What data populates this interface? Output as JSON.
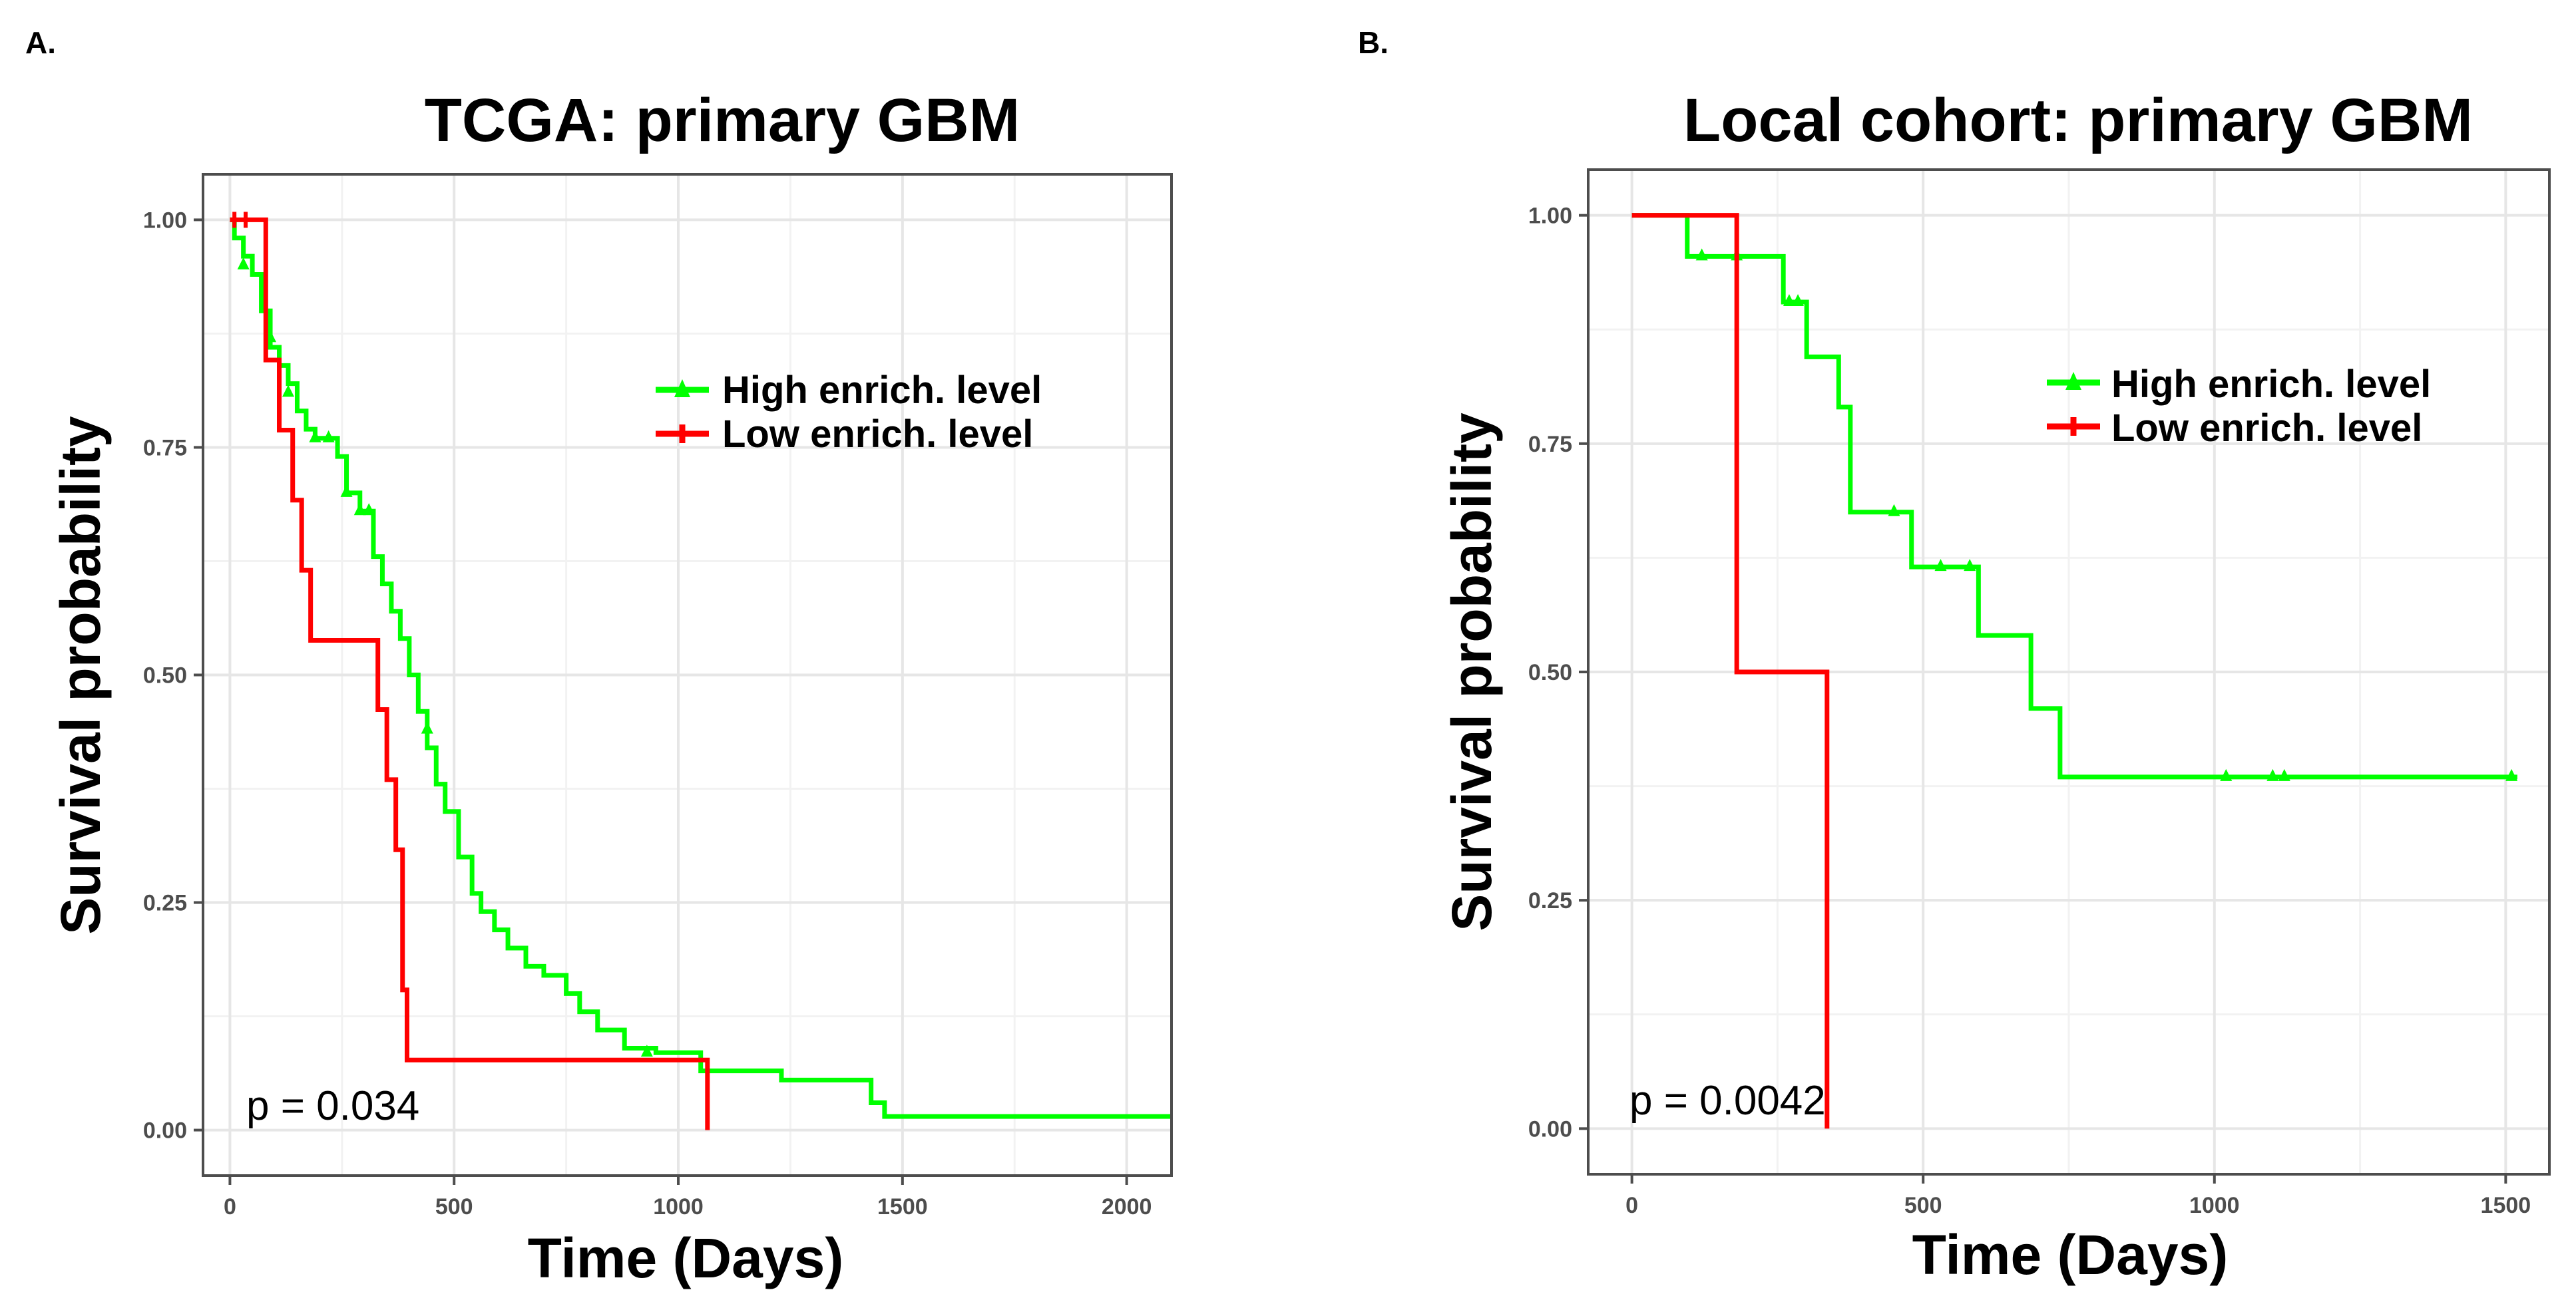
{
  "figure": {
    "panel_labels": [
      "A.",
      "B."
    ]
  },
  "chart_data": [
    {
      "type": "line",
      "subtype": "kaplan-meier",
      "panel": "A.",
      "title": "TCGA: primary GBM",
      "xlabel": "Time (Days)",
      "ylabel": "Survival probability",
      "xlim": [
        -60,
        2100
      ],
      "ylim": [
        -0.05,
        1.05
      ],
      "xticks": [
        0,
        500,
        1000,
        1500,
        2000
      ],
      "xtick_labels": [
        "0",
        "500",
        "1000",
        "1500",
        "2000"
      ],
      "yticks": [
        0,
        0.25,
        0.5,
        0.75,
        1.0
      ],
      "ytick_labels": [
        "0.00",
        "0.25",
        "0.50",
        "0.75",
        "1.00"
      ],
      "grid": true,
      "legend_position": "top-right",
      "annotation": "p = 0.034",
      "series": [
        {
          "name": "High enrich. level",
          "color": "#00ff00",
          "times": [
            0,
            10,
            30,
            50,
            70,
            90,
            110,
            130,
            150,
            170,
            190,
            240,
            260,
            290,
            320,
            340,
            360,
            380,
            400,
            420,
            440,
            460,
            480,
            510,
            540,
            560,
            590,
            620,
            660,
            700,
            750,
            780,
            820,
            880,
            950,
            1050,
            1230,
            1430,
            1460,
            2100
          ],
          "survival": [
            1.0,
            0.98,
            0.96,
            0.94,
            0.9,
            0.86,
            0.84,
            0.82,
            0.79,
            0.77,
            0.76,
            0.74,
            0.7,
            0.68,
            0.63,
            0.6,
            0.57,
            0.54,
            0.5,
            0.46,
            0.42,
            0.38,
            0.35,
            0.3,
            0.26,
            0.24,
            0.22,
            0.2,
            0.18,
            0.17,
            0.15,
            0.13,
            0.11,
            0.09,
            0.085,
            0.065,
            0.055,
            0.03,
            0.015,
            0.015
          ],
          "censor_times": [
            30,
            90,
            130,
            190,
            220,
            260,
            290,
            310,
            440,
            930
          ],
          "censor_survival": [
            0.95,
            0.87,
            0.81,
            0.76,
            0.76,
            0.7,
            0.68,
            0.68,
            0.44,
            0.085
          ]
        },
        {
          "name": "Low enrich. level",
          "color": "#ff0000",
          "times": [
            0,
            80,
            110,
            140,
            160,
            180,
            330,
            350,
            370,
            385,
            395,
            1060,
            1065
          ],
          "survival": [
            1.0,
            0.846,
            0.769,
            0.692,
            0.615,
            0.538,
            0.462,
            0.385,
            0.308,
            0.154,
            0.077,
            0.077,
            0.0
          ],
          "censor_times": [
            10,
            35
          ],
          "censor_survival": [
            1.0,
            1.0
          ]
        }
      ]
    },
    {
      "type": "line",
      "subtype": "kaplan-meier",
      "panel": "B.",
      "title": "Local cohort: primary GBM",
      "xlabel": "Time (Days)",
      "ylabel": "Survival probability",
      "xlim": [
        -75,
        1575
      ],
      "ylim": [
        -0.05,
        1.05
      ],
      "xticks": [
        0,
        500,
        1000,
        1500
      ],
      "xtick_labels": [
        "0",
        "500",
        "1000",
        "1500"
      ],
      "yticks": [
        0,
        0.25,
        0.5,
        0.75,
        1.0
      ],
      "ytick_labels": [
        "0.00",
        "0.25",
        "0.50",
        "0.75",
        "1.00"
      ],
      "grid": true,
      "legend_position": "top-right",
      "annotation": "p = 0.0042",
      "series": [
        {
          "name": "High enrich. level",
          "color": "#00ff00",
          "times": [
            0,
            95,
            260,
            300,
            355,
            375,
            480,
            595,
            685,
            735,
            1520
          ],
          "survival": [
            1.0,
            0.955,
            0.905,
            0.845,
            0.79,
            0.675,
            0.615,
            0.54,
            0.46,
            0.385,
            0.385
          ],
          "censor_times": [
            120,
            180,
            270,
            285,
            450,
            530,
            580,
            1020,
            1100,
            1120,
            1510
          ],
          "censor_survival": [
            0.955,
            0.955,
            0.905,
            0.905,
            0.675,
            0.615,
            0.615,
            0.385,
            0.385,
            0.385,
            0.385
          ]
        },
        {
          "name": "Low enrich. level",
          "color": "#ff0000",
          "times": [
            0,
            180,
            335
          ],
          "survival": [
            1.0,
            0.5,
            0.0
          ],
          "censor_times": [],
          "censor_survival": []
        }
      ]
    }
  ]
}
